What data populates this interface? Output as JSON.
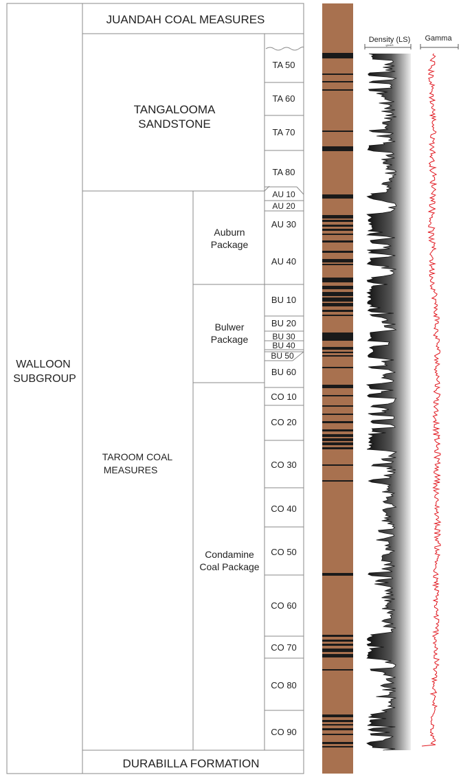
{
  "header": {
    "top_formation": "JUANDAH COAL MEASURES",
    "bottom_formation": "DURABILLA FORMATION"
  },
  "subgroup": {
    "lines": [
      "WALLOON",
      "SUBGROUP"
    ]
  },
  "formations": [
    {
      "id": "tangalooma",
      "lines": [
        "TANGALOOMA",
        "SANDSTONE"
      ]
    },
    {
      "id": "taroom",
      "lines": [
        "TAROOM COAL",
        "MEASURES"
      ]
    }
  ],
  "packages": [
    {
      "id": "auburn",
      "lines": [
        "Auburn",
        "Package"
      ]
    },
    {
      "id": "bulwer",
      "lines": [
        "Bulwer",
        "Package"
      ]
    },
    {
      "id": "condamine",
      "lines": [
        "Condamine",
        "Coal Package"
      ]
    }
  ],
  "units": [
    "TA 50",
    "TA 60",
    "TA 70",
    "TA 80",
    "AU 10",
    "AU 20",
    "AU 30",
    "AU 40",
    "BU 10",
    "BU 20",
    "BU 30",
    "BU 40",
    "BU 50",
    "BU 60",
    "CO 10",
    "CO 20",
    "CO 30",
    "CO 40",
    "CO 50",
    "CO 60",
    "CO 70",
    "CO 80",
    "CO 90"
  ],
  "logs": {
    "density": {
      "title": "Density (LS)",
      "unit": "g/cm3"
    },
    "gamma": {
      "title": "Gamma"
    }
  },
  "colors": {
    "sand": "#a8714f",
    "coal": "#1a1a1a",
    "gamma": "#e0141c",
    "border": "#888888"
  }
}
